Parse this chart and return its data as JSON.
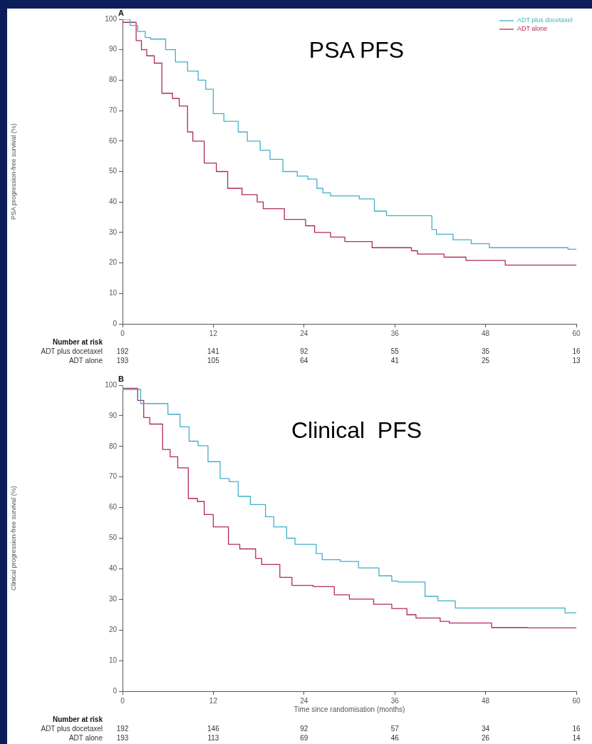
{
  "chart_data": [
    {
      "type": "step",
      "subtitle": "A",
      "title": "PSA PFS",
      "ylabel": "PSA progression-free survival (%)",
      "xlim": [
        0,
        60
      ],
      "xticks": [
        0,
        12,
        24,
        36,
        48,
        60
      ],
      "ylim": [
        0,
        100
      ],
      "yticks": [
        0,
        10,
        20,
        30,
        40,
        50,
        60,
        70,
        80,
        90,
        100
      ],
      "grid": false,
      "legend": "top right",
      "series": [
        {
          "name": "ADT plus docetaxel",
          "color": "#3fb0c8",
          "x": [
            0,
            1,
            2,
            3,
            3.7,
            5.7,
            7,
            8.6,
            10,
            11,
            12,
            13.4,
            15.3,
            16.5,
            18.2,
            19.5,
            21.2,
            23.1,
            24.5,
            25.7,
            26.5,
            27.5,
            28.9,
            31.3,
            33.3,
            34.9,
            35.7,
            40.9,
            41.5,
            43.7,
            46.1,
            48.5,
            58.9,
            60
          ],
          "values": [
            100,
            100,
            98,
            96,
            94,
            93.5,
            90,
            86,
            83,
            80,
            77,
            69,
            66.5,
            63,
            60,
            57,
            54,
            50,
            48.5,
            47.5,
            44.5,
            43,
            42,
            42,
            41,
            37,
            35.5,
            35.5,
            31,
            29.4,
            27.6,
            26.3,
            25,
            24.5
          ]
        },
        {
          "name": "ADT alone",
          "color": "#b02a5a",
          "x": [
            0,
            1.8,
            2.5,
            3.2,
            4.2,
            5.2,
            6.6,
            7.5,
            8.6,
            9.3,
            10.8,
            12.4,
            13.9,
            15.8,
            17.8,
            18.6,
            21.4,
            24.2,
            25.4,
            27.5,
            29.4,
            33,
            38.2,
            39,
            42.5,
            45.4,
            50.6,
            54.2,
            60
          ],
          "values": [
            100,
            99,
            93,
            90,
            88,
            85.6,
            75.7,
            74,
            71.5,
            63,
            60,
            52.8,
            50,
            44.5,
            42.4,
            40,
            37.8,
            34.3,
            32.2,
            30,
            28.5,
            27,
            25,
            24,
            22.9,
            21.9,
            20.8,
            19.3,
            19.3
          ]
        }
      ],
      "annotations": [
        "Number at risk",
        "ADT plus docetaxel",
        "192",
        "141",
        "92",
        "55",
        "35",
        "16",
        "ADT alone",
        "193",
        "105",
        "64",
        "41",
        "25",
        "13"
      ]
    },
    {
      "type": "step",
      "subtitle": "B",
      "title": "Clinical  PFS",
      "ylabel": "Clinical progression-free survival (%)",
      "xlabel": "Time since randomisation (months)",
      "xlim": [
        0,
        60
      ],
      "xticks": [
        0,
        12,
        24,
        36,
        48,
        60
      ],
      "ylim": [
        0,
        100
      ],
      "yticks": [
        0,
        10,
        20,
        30,
        40,
        50,
        60,
        70,
        80,
        90,
        100
      ],
      "grid": false,
      "series": [
        {
          "color": "#3fb0c8",
          "x": [
            0,
            2.4,
            4.4,
            6,
            7.6,
            8.8,
            10,
            11.3,
            12.9,
            14.1,
            15.3,
            16.9,
            18.9,
            20,
            21.7,
            22.8,
            25.6,
            26.4,
            28.8,
            31.2,
            33.9,
            35.6,
            36.4,
            40,
            41.7,
            44,
            46.4,
            58.5,
            59.7,
            60
          ],
          "values": [
            100,
            98.6,
            94,
            94,
            90.5,
            86.4,
            81.7,
            80.2,
            75,
            69.5,
            68.5,
            63.7,
            61,
            57,
            53.7,
            50,
            48,
            45,
            43,
            42.4,
            40.3,
            37.7,
            36,
            35.7,
            31,
            29.5,
            27.2,
            27.2,
            25.6,
            25.6
          ]
        },
        {
          "color": "#b02a5a",
          "x": [
            0,
            2,
            2.8,
            3.6,
            5.3,
            6.3,
            7.3,
            8.7,
            9.9,
            10.8,
            12,
            14,
            15.5,
            17.6,
            18.4,
            20.8,
            22.4,
            25.2,
            28,
            30,
            33.2,
            35.6,
            37.6,
            38.8,
            42,
            43.2,
            48.8,
            53.5,
            60
          ],
          "values": [
            100,
            99,
            95,
            89.4,
            87.3,
            79,
            76.6,
            73,
            63,
            62,
            57.7,
            53.7,
            48,
            46.5,
            43.4,
            41.4,
            37.2,
            34.6,
            34.2,
            31.5,
            30.1,
            28.4,
            27,
            25,
            23.9,
            22.8,
            22.3,
            20.8,
            20.7
          ]
        }
      ],
      "annotations": [
        "Number at risk",
        "ADT plus docetaxel",
        "192",
        "146",
        "92",
        "57",
        "34",
        "16",
        "ADT alone",
        "193",
        "113",
        "69",
        "46",
        "26",
        "14"
      ]
    }
  ]
}
